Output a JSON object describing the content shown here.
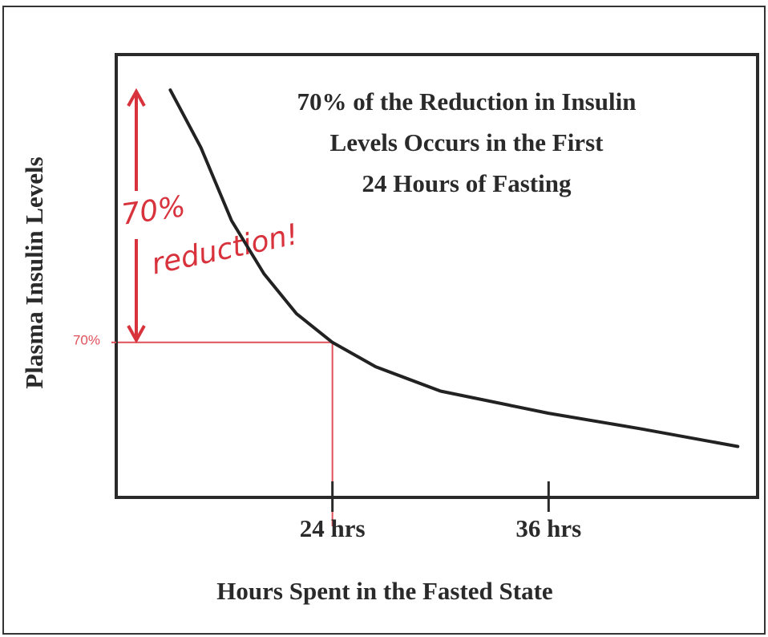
{
  "chart_data": {
    "type": "line",
    "title": [
      "70% of the Reduction in Insulin",
      "Levels Occurs in the First",
      "24 Hours of Fasting"
    ],
    "x_label": "Hours Spent in the Fasted State",
    "y_label": "Plasma Insulin Levels",
    "annotation": [
      "70%",
      "reduction!"
    ],
    "x": [
      15,
      16.7,
      18.4,
      20.2,
      22,
      24,
      26.4,
      30,
      36,
      41.1,
      46.5
    ],
    "series": [
      {
        "color": "#222222",
        "values": [
          184,
          158,
          125,
          101,
          83,
          70,
          59,
          48,
          38,
          31,
          23
        ]
      }
    ],
    "xlim": [
      12,
      47.6
    ],
    "ylim": [
      0,
      200
    ],
    "xticks": [
      {
        "value": 24,
        "label": "24 hrs"
      },
      {
        "value": 36,
        "label": "36 hrs"
      }
    ],
    "yticks": [
      {
        "value": 70,
        "label": "70%"
      }
    ],
    "reference": {
      "x": 24,
      "y": 70,
      "color": "#e0505a"
    },
    "annotation_color": "#d8323c"
  }
}
